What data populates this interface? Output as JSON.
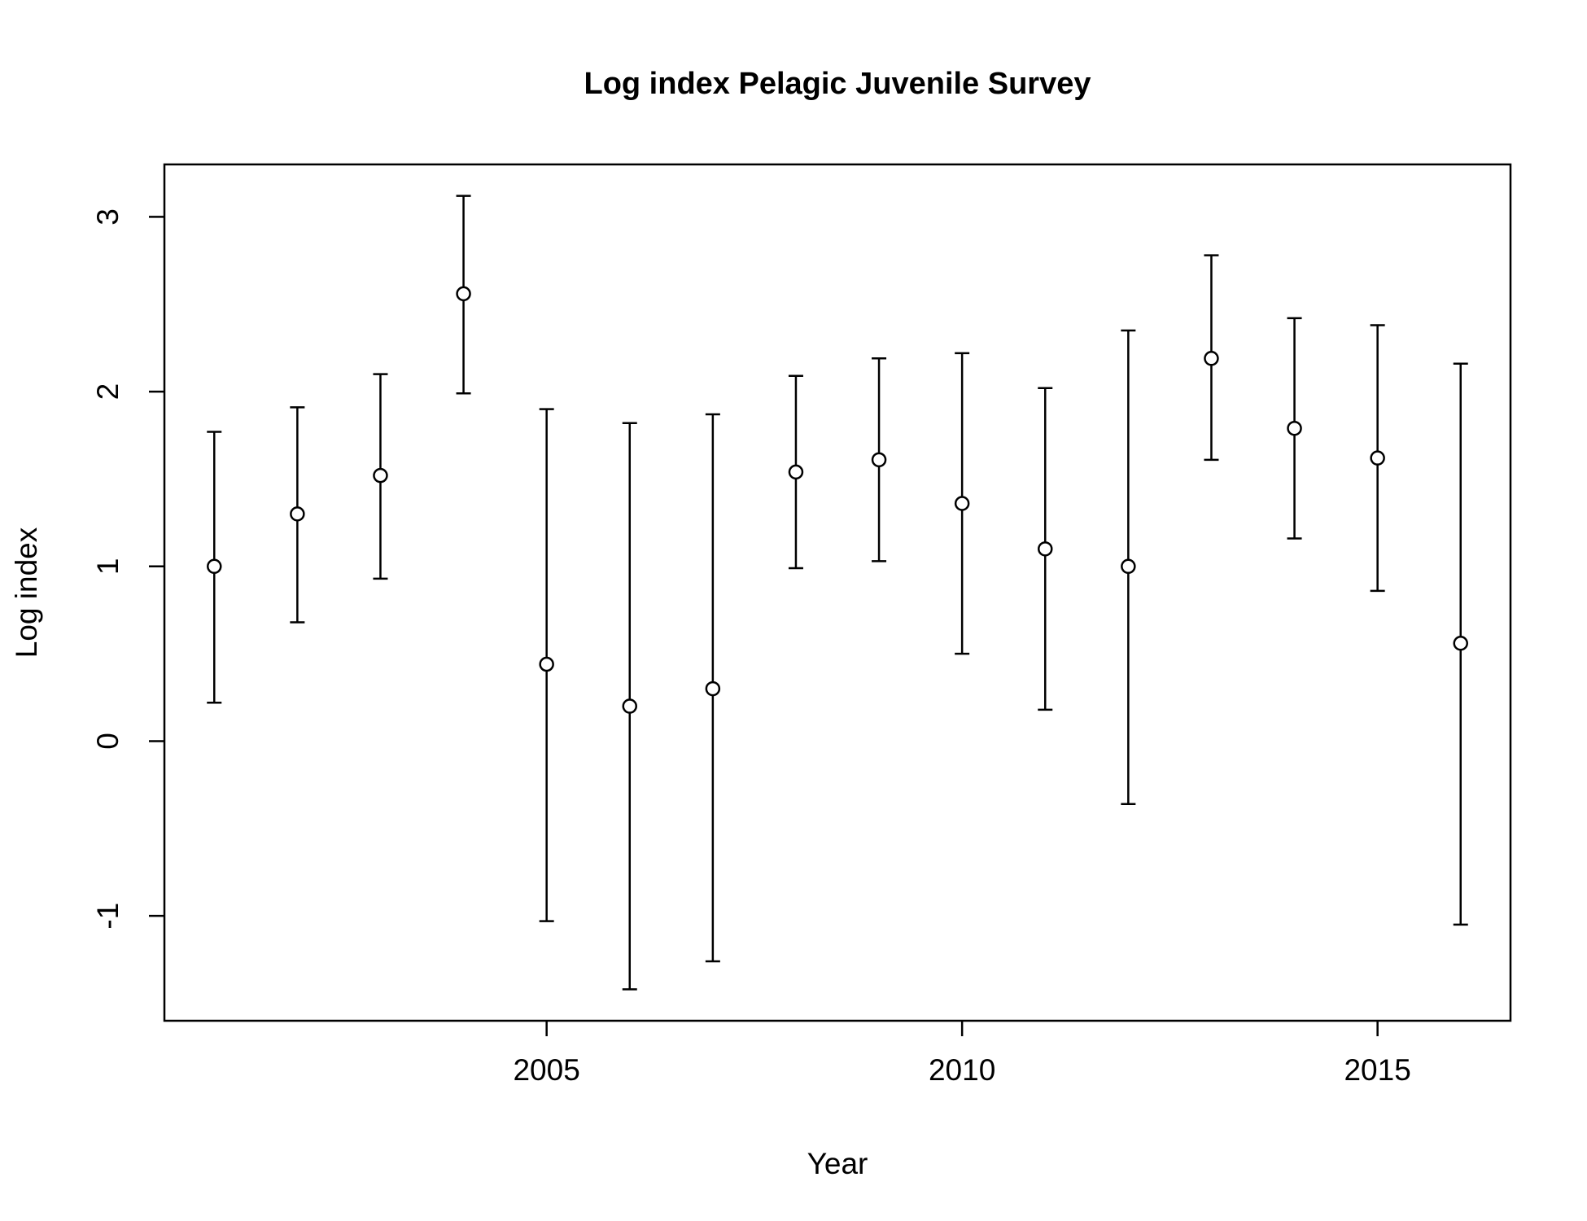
{
  "chart_data": {
    "type": "scatter",
    "title": "Log index Pelagic Juvenile Survey",
    "xlabel": "Year",
    "ylabel": "Log index",
    "xlim": [
      2000.4,
      2016.6
    ],
    "ylim": [
      -1.6,
      3.3
    ],
    "x_ticks": [
      2005,
      2010,
      2015
    ],
    "y_ticks": [
      -1,
      0,
      1,
      2,
      3
    ],
    "grid": false,
    "legend": "none",
    "marker": "open-circle",
    "color": "#000000",
    "series": [
      {
        "x": [
          2001,
          2002,
          2003,
          2004,
          2005,
          2006,
          2007,
          2008,
          2009,
          2010,
          2011,
          2012,
          2013,
          2014,
          2015,
          2016
        ],
        "y": [
          1.0,
          1.3,
          1.52,
          2.56,
          0.44,
          0.2,
          0.3,
          1.54,
          1.61,
          1.36,
          1.1,
          1.0,
          2.19,
          1.79,
          1.62,
          0.56
        ],
        "lower": [
          0.22,
          0.68,
          0.93,
          1.99,
          -1.03,
          -1.42,
          -1.26,
          0.99,
          1.03,
          0.5,
          0.18,
          -0.36,
          1.61,
          1.16,
          0.86,
          -1.05
        ],
        "upper": [
          1.77,
          1.91,
          2.1,
          3.12,
          1.9,
          1.82,
          1.87,
          2.09,
          2.19,
          2.22,
          2.02,
          2.35,
          2.78,
          2.42,
          2.38,
          2.16
        ]
      }
    ]
  }
}
